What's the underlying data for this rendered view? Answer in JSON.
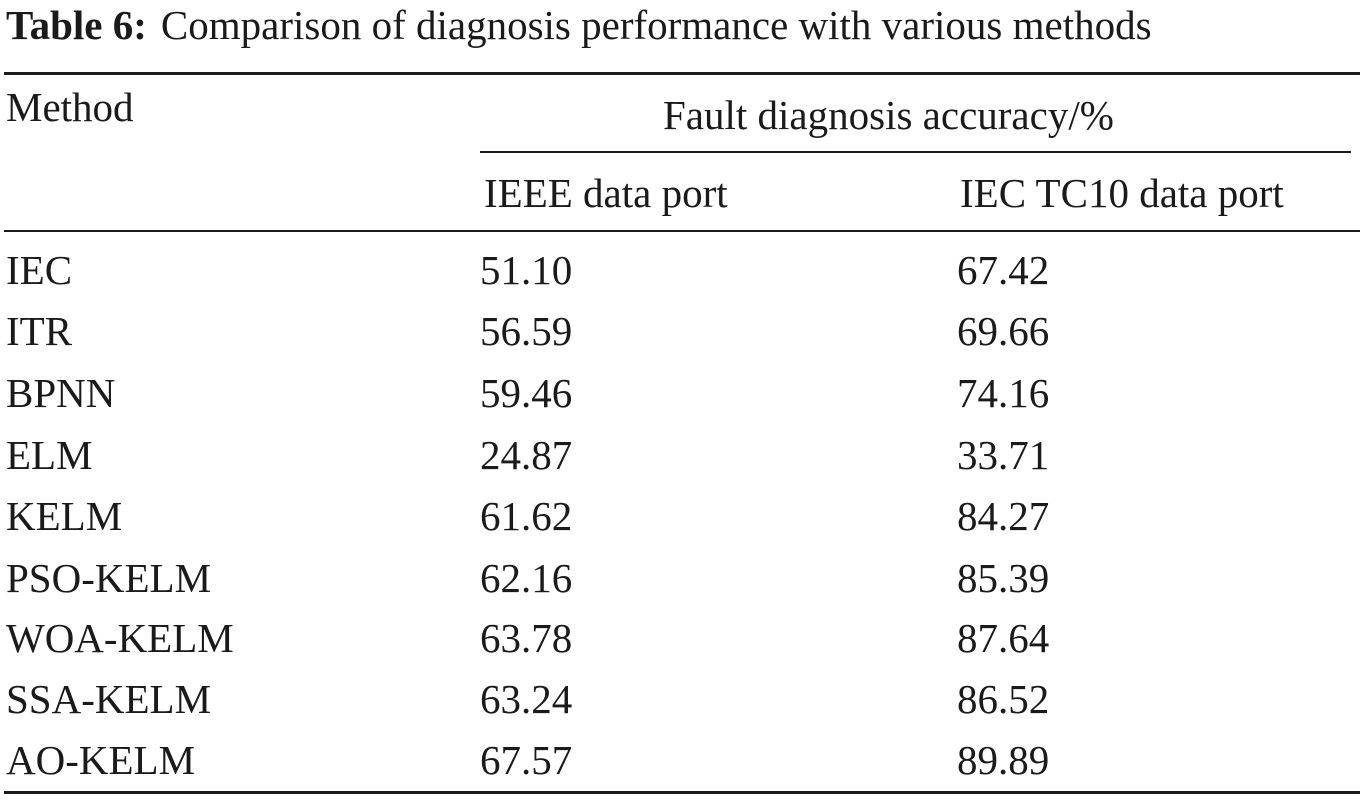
{
  "caption": {
    "label": "Table 6:",
    "text": "Comparison of diagnosis performance with various methods"
  },
  "header": {
    "method": "Method",
    "group": "Fault diagnosis accuracy/%",
    "col_ieee": "IEEE data port",
    "col_iec": "IEC TC10 data port"
  },
  "rows": [
    {
      "method": "IEC",
      "ieee": "51.10",
      "iec": "67.42"
    },
    {
      "method": "ITR",
      "ieee": "56.59",
      "iec": "69.66"
    },
    {
      "method": "BPNN",
      "ieee": "59.46",
      "iec": "74.16"
    },
    {
      "method": "ELM",
      "ieee": "24.87",
      "iec": "33.71"
    },
    {
      "method": "KELM",
      "ieee": "61.62",
      "iec": "84.27"
    },
    {
      "method": "PSO-KELM",
      "ieee": "62.16",
      "iec": "85.39"
    },
    {
      "method": "WOA-KELM",
      "ieee": "63.78",
      "iec": "87.64"
    },
    {
      "method": "SSA-KELM",
      "ieee": "63.24",
      "iec": "86.52"
    },
    {
      "method": "AO-KELM",
      "ieee": "67.57",
      "iec": "89.89"
    }
  ]
}
